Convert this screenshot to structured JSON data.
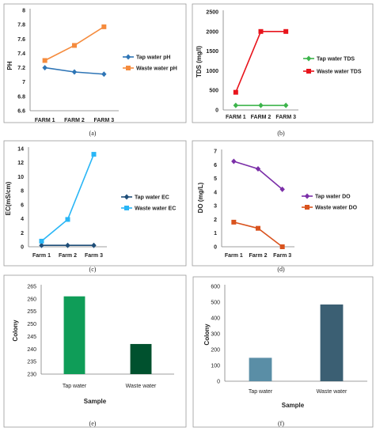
{
  "chart_data": [
    {
      "id": "a",
      "caption": "(a)",
      "type": "line",
      "categories": [
        "FARM 1",
        "FARM 2",
        "FARM 3"
      ],
      "ylabel": "PH",
      "ylim": [
        6.6,
        8
      ],
      "yticks": [
        "6.6",
        "6.8",
        "7",
        "7.2",
        "7.4",
        "7.6",
        "7.8",
        "8"
      ],
      "legend_position": "right",
      "series": [
        {
          "name": "Tap water pH",
          "color": "#2e75b6",
          "marker": "diamond",
          "values": [
            7.2,
            7.14,
            7.11
          ]
        },
        {
          "name": "Waste water pH",
          "color": "#f58b3d",
          "marker": "square",
          "values": [
            7.3,
            7.51,
            7.77
          ]
        }
      ]
    },
    {
      "id": "b",
      "caption": "(b)",
      "type": "line",
      "categories": [
        "FARM 1",
        "FARM 2",
        "FARM 3"
      ],
      "ylabel": "TDS (mg/l)",
      "ylim": [
        0,
        2500
      ],
      "yticks": [
        "0",
        "500",
        "1000",
        "1500",
        "2000",
        "2500"
      ],
      "legend_position": "right",
      "series": [
        {
          "name": "Tap water TDS",
          "color": "#3cb44b",
          "marker": "diamond",
          "values": [
            115,
            115,
            115
          ]
        },
        {
          "name": "Waste water TDS",
          "color": "#e8141c",
          "marker": "square",
          "values": [
            450,
            2000,
            2000
          ]
        }
      ]
    },
    {
      "id": "c",
      "caption": "(c)",
      "type": "line",
      "categories": [
        "Farm 1",
        "Farm 2",
        "Farm 3"
      ],
      "ylabel": "EC(mS/cm)",
      "ylim": [
        0,
        14
      ],
      "yticks": [
        "0",
        "2",
        "4",
        "6",
        "8",
        "10",
        "12",
        "14"
      ],
      "legend_position": "right",
      "series": [
        {
          "name": "Tap water EC",
          "color": "#1f4e79",
          "marker": "diamond",
          "values": [
            0.2,
            0.2,
            0.2
          ]
        },
        {
          "name": "Waste water EC",
          "color": "#29b6f6",
          "marker": "square",
          "values": [
            0.8,
            3.9,
            13.2
          ]
        }
      ]
    },
    {
      "id": "d",
      "caption": "(d)",
      "type": "line",
      "categories": [
        "Farm 1",
        "Farm 2",
        "Farm 3"
      ],
      "ylabel": "DO (mg/L)",
      "ylim": [
        0,
        7
      ],
      "yticks": [
        "0",
        "1",
        "2",
        "3",
        "4",
        "5",
        "6",
        "7"
      ],
      "legend_position": "right",
      "series": [
        {
          "name": "Tap water DO",
          "color": "#7b2fa8",
          "marker": "diamond",
          "values": [
            6.25,
            5.7,
            4.2
          ]
        },
        {
          "name": "Waste water DO",
          "color": "#d9531e",
          "marker": "square",
          "values": [
            1.8,
            1.35,
            0.0
          ]
        }
      ]
    },
    {
      "id": "e",
      "caption": "(e)",
      "type": "bar",
      "categories": [
        "Tap water",
        "Waste water"
      ],
      "values": [
        261,
        242
      ],
      "colors": [
        "#0f9d58",
        "#00512e"
      ],
      "xlabel": "Sample",
      "ylabel": "Colony",
      "ylim": [
        230,
        265
      ],
      "yticks": [
        "230",
        "235",
        "240",
        "245",
        "250",
        "255",
        "260",
        "265"
      ],
      "grid": false
    },
    {
      "id": "f",
      "caption": "(f)",
      "type": "bar",
      "categories": [
        "Tap water",
        "Waste water"
      ],
      "values": [
        148,
        485
      ],
      "colors": [
        "#5a8ea6",
        "#3b5f73"
      ],
      "xlabel": "Sample",
      "ylabel": "Colony",
      "ylim": [
        0,
        600
      ],
      "yticks": [
        "0",
        "100",
        "200",
        "300",
        "400",
        "500",
        "600"
      ],
      "grid": false
    }
  ]
}
